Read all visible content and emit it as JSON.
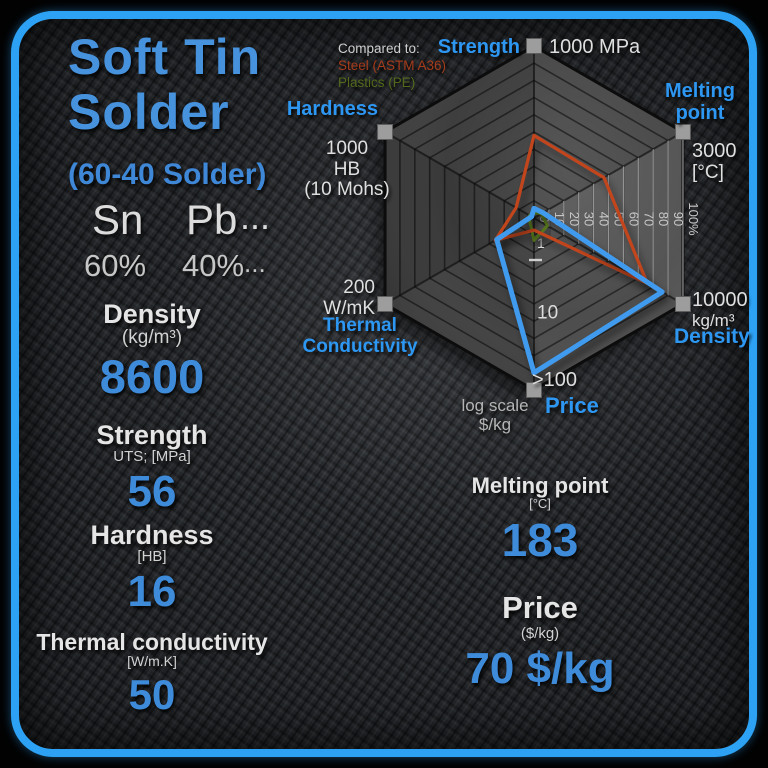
{
  "header": {
    "title_line1": "Soft Tin",
    "title_line2": "Solder",
    "subtitle": "(60-40 Solder)"
  },
  "composition": {
    "symbol1": "Sn",
    "symbol2": "Pb",
    "symbol_more": "...",
    "percent1": "60%",
    "percent2": "40%",
    "percent_more": "..."
  },
  "properties": {
    "density": {
      "label": "Density",
      "unit": "(kg/m³)",
      "value": "8600"
    },
    "strength": {
      "label": "Strength",
      "unit": "UTS; [MPa]",
      "value": "56"
    },
    "hardness": {
      "label": "Hardness",
      "unit": "[HB]",
      "value": "16"
    },
    "thermal": {
      "label": "Thermal conductivity",
      "unit": "[W/m.K]",
      "value": "50"
    },
    "melting": {
      "label": "Melting point",
      "unit": "[°C]",
      "value": "183"
    },
    "price": {
      "label": "Price",
      "unit": "($/kg)",
      "value": "70 $/kg"
    }
  },
  "legend": {
    "title": "Compared to:",
    "steel": "Steel (ASTM A36)",
    "plastics": "Plastics (PE)"
  },
  "chart_data": {
    "type": "radar",
    "grid": "hexagonal, 10 rings, 10% steps",
    "legend_position": "top-left",
    "axes": [
      {
        "name": "Strength",
        "angle_deg": 0,
        "max_label": "1000 MPa",
        "lines": [
          "1000 MPa"
        ]
      },
      {
        "name": "Melting point",
        "angle_deg": 60,
        "max_label": "3000 [°C]",
        "lines": [
          "3000",
          "[°C]"
        ]
      },
      {
        "name": "Density",
        "angle_deg": 120,
        "max_label": "10000 kg/m³",
        "lines": [
          "10000",
          "kg/m³"
        ]
      },
      {
        "name": "Price",
        "angle_deg": 180,
        "max_label": ">100 $/kg",
        "lines": [
          ">100"
        ],
        "scale": "log",
        "note_lines": [
          "log scale",
          "$/kg"
        ]
      },
      {
        "name": "Thermal Conductivity",
        "angle_deg": 240,
        "max_label": "200 W/mK",
        "lines": [
          "200",
          "W/mK"
        ]
      },
      {
        "name": "Hardness",
        "angle_deg": 300,
        "max_label": "1000 HB (10 Mohs)",
        "lines": [
          "1000",
          "HB",
          "(10 Mohs)"
        ]
      }
    ],
    "ring_tick_labels": [
      "0",
      "10",
      "20",
      "30",
      "40",
      "50",
      "60",
      "70",
      "80",
      "90",
      "100%"
    ],
    "price_axis_ticks": [
      {
        "label": "1",
        "radius_pct": 14
      },
      {
        "label": "10",
        "radius_pct": 55
      }
    ],
    "series": [
      {
        "name": "Soft Tin Solder",
        "color": "#3f9bef",
        "stroke_width": 5,
        "values_pct": [
          5.6,
          6.1,
          86,
          90,
          25,
          1.6
        ]
      },
      {
        "name": "Steel (ASTM A36)",
        "color": "#c2441c",
        "stroke_width": 3.2,
        "values_pct": [
          48,
          47,
          76,
          7,
          26,
          12
        ]
      },
      {
        "name": "Plastics (PE)",
        "color": "#5a7a1e",
        "stroke_width": 3,
        "values_pct": [
          3,
          5,
          9,
          13,
          3,
          3
        ]
      }
    ]
  }
}
